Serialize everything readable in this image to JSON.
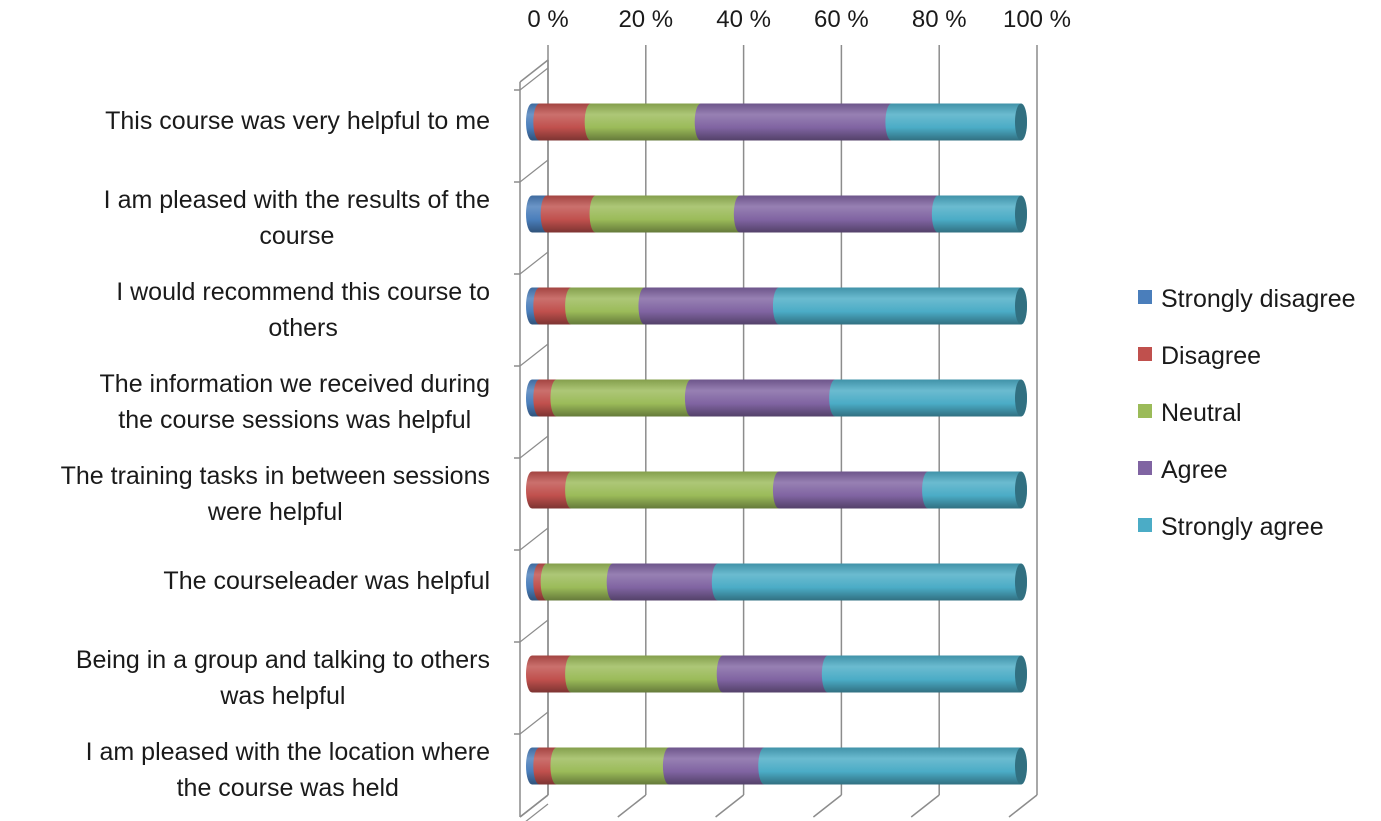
{
  "chart_data": {
    "type": "bar",
    "orientation": "horizontal",
    "stacked": "percent",
    "style": "3d-cylinder",
    "title": "",
    "xlabel": "",
    "ylabel": "",
    "xlim": [
      0,
      100
    ],
    "tick_labels": [
      "0 %",
      "20 %",
      "40 %",
      "60 %",
      "80 %",
      "100 %"
    ],
    "grid": true,
    "legend_position": "right",
    "categories": [
      [
        "This course was very helpful to me"
      ],
      [
        "I am pleased with the results of the",
        "course"
      ],
      [
        "I would  recommend this course to",
        "others"
      ],
      [
        "The information we received during",
        "the course sessions was helpful"
      ],
      [
        "The training tasks in between sessions",
        "were helpful"
      ],
      [
        "The courseleader was helpful"
      ],
      [
        "Being in a group and talking to others",
        "was helpful"
      ],
      [
        "I am pleased with the location where",
        "the course was held"
      ]
    ],
    "series": [
      {
        "name": "Strongly disagree",
        "color": "#4a7ebb",
        "values": [
          1.5,
          3,
          1.5,
          1.5,
          0,
          1.5,
          0,
          1.5
        ]
      },
      {
        "name": "Disagree",
        "color": "#c0504d",
        "values": [
          10.5,
          10,
          6.5,
          3.5,
          8,
          1.5,
          8,
          3.5
        ]
      },
      {
        "name": "Neutral",
        "color": "#9bbb59",
        "values": [
          22.5,
          29.5,
          15,
          27.5,
          42.5,
          13.5,
          31,
          23
        ]
      },
      {
        "name": "Agree",
        "color": "#8064a2",
        "values": [
          39,
          40.5,
          27.5,
          29.5,
          30.5,
          21.5,
          21.5,
          19.5
        ]
      },
      {
        "name": "Strongly agree",
        "color": "#4bacc6",
        "values": [
          26.5,
          17,
          49.5,
          38,
          19,
          62,
          39.5,
          52.5
        ]
      }
    ]
  }
}
